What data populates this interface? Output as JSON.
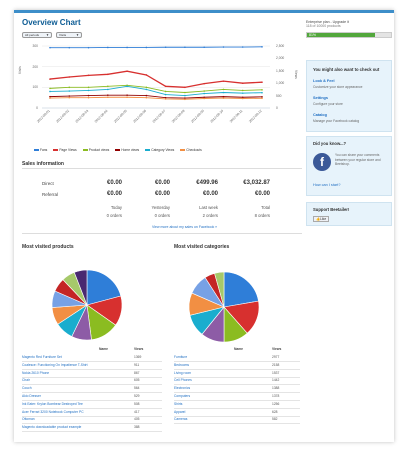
{
  "title": "Overview Chart",
  "selects": {
    "period": "All periods",
    "stats": "Visits"
  },
  "axis": {
    "left_ticks": [
      "300",
      "200",
      "100",
      "0"
    ],
    "right_ticks": [
      "2,500",
      "2,000",
      "1,500",
      "1,000",
      "500",
      "0"
    ],
    "left_label": "Visits",
    "right_label": "Views",
    "x_ticks": [
      "2012-08-01",
      "2012-08-02",
      "2012-08-03",
      "2012-08-04",
      "2012-08-05",
      "2012-08-06",
      "2012-08-07",
      "2012-08-08",
      "2012-08-09",
      "2012-08-10",
      "2012-08-11",
      "2012-08-12"
    ]
  },
  "legend": [
    {
      "label": "Fans",
      "color": "#2f7ed8"
    },
    {
      "label": "Page Views",
      "color": "#d7302f"
    },
    {
      "label": "Product views",
      "color": "#8bbc21"
    },
    {
      "label": "Home views",
      "color": "#910000"
    },
    {
      "label": "Category Views",
      "color": "#1aadce"
    },
    {
      "label": "Checkouts",
      "color": "#f28f43"
    }
  ],
  "chart_data": {
    "type": "line",
    "x": [
      "2012-08-01",
      "2012-08-02",
      "2012-08-03",
      "2012-08-04",
      "2012-08-05",
      "2012-08-06",
      "2012-08-07",
      "2012-08-08",
      "2012-08-09",
      "2012-08-10",
      "2012-08-11",
      "2012-08-12"
    ],
    "ylim": [
      0,
      300
    ],
    "series": [
      {
        "name": "Fans",
        "values": [
          292,
          292,
          292,
          293,
          293,
          293,
          294,
          294,
          294,
          295,
          295,
          296
        ]
      },
      {
        "name": "Page Views",
        "values": [
          140,
          150,
          158,
          163,
          178,
          160,
          105,
          100,
          118,
          130,
          120,
          125
        ]
      },
      {
        "name": "Product views",
        "values": [
          95,
          100,
          100,
          105,
          110,
          100,
          80,
          75,
          82,
          90,
          85,
          88
        ]
      },
      {
        "name": "Home views",
        "values": [
          55,
          58,
          60,
          62,
          62,
          60,
          50,
          48,
          52,
          55,
          52,
          54
        ]
      },
      {
        "name": "Category Views",
        "values": [
          80,
          82,
          85,
          90,
          105,
          90,
          65,
          60,
          70,
          75,
          72,
          74
        ]
      },
      {
        "name": "Checkouts",
        "values": [
          48,
          50,
          50,
          52,
          52,
          50,
          44,
          42,
          46,
          48,
          46,
          47
        ]
      }
    ]
  },
  "sales": {
    "heading": "Sales information",
    "rows": [
      {
        "label": "Direct",
        "values": [
          "€0.00",
          "€0.00",
          "€499.96",
          "€3,032.87"
        ]
      },
      {
        "label": "Referral",
        "values": [
          "€0.00",
          "€0.00",
          "€0.00",
          "€0.00"
        ]
      }
    ],
    "periods": [
      "Today",
      "Yesterday",
      "Last week",
      "Total"
    ],
    "orders": [
      "0 orders",
      "0 orders",
      "2 orders",
      "8 orders"
    ],
    "link": "View more about my sales on Facebook »"
  },
  "products": {
    "heading": "Most visited products",
    "col_name": "Name",
    "col_views": "Views",
    "colors": [
      "#2f7ed8",
      "#d7302f",
      "#8bbc21",
      "#8d5ca6",
      "#1aadce",
      "#f28f43",
      "#77a1e5",
      "#c42525",
      "#a6c96a",
      "#492970"
    ],
    "rows": [
      {
        "name": "Magento Red Furniture Set",
        "views": "1369"
      },
      {
        "name": "Coalesce: Functioning On Impatience T-Shirt",
        "views": "911"
      },
      {
        "name": "Nokia 2610 Phone",
        "views": "867"
      },
      {
        "name": "Chair",
        "views": "605"
      },
      {
        "name": "Couch",
        "views": "564"
      },
      {
        "name": "Akio Dresser",
        "views": "529"
      },
      {
        "name": "Ink Eater: Krylon Bombear Destroyed Tee",
        "views": "508"
      },
      {
        "name": "Acer Ferrari 3200 Notebook Computer PC",
        "views": "417"
      },
      {
        "name": "Ottoman",
        "views": "405"
      },
      {
        "name": "Magento downloadable product example",
        "views": "388"
      }
    ]
  },
  "categories": {
    "heading": "Most visited categories",
    "col_name": "Name",
    "col_views": "Views",
    "colors": [
      "#2f7ed8",
      "#d7302f",
      "#8bbc21",
      "#8d5ca6",
      "#1aadce",
      "#f28f43",
      "#77a1e5",
      "#c42525",
      "#a6c96a",
      "#492970"
    ],
    "rows": [
      {
        "name": "Furniture",
        "views": "2977"
      },
      {
        "name": "Bedrooms",
        "views": "2158"
      },
      {
        "name": "Living room",
        "views": "1537"
      },
      {
        "name": "Cell Phones",
        "views": "1442"
      },
      {
        "name": "Electronics",
        "views": "1388"
      },
      {
        "name": "Computers",
        "views": "1378"
      },
      {
        "name": "Shirts",
        "views": "1256"
      },
      {
        "name": "Apparel",
        "views": "628"
      },
      {
        "name": "Cameras",
        "views": "582"
      }
    ]
  },
  "sidebar": {
    "plan": "Enterprise plan - Upgrade it",
    "products": "118 of 10000 products",
    "progress_label": "81%",
    "progress": 0.81,
    "checkout_title": "You might also want to check out",
    "items": [
      {
        "title": "Look & Feel",
        "desc": "Customize your store appearance"
      },
      {
        "title": "Settings",
        "desc": "Configure your store"
      },
      {
        "title": "Catalog",
        "desc": "Manage your Facebook catalog"
      }
    ],
    "did_you_know": "Did you know...?",
    "share_text": "You can share your comments between your regular store and Beetshop.",
    "how_link": "How can I start?",
    "support": "Support Beetailer!",
    "like": "Like"
  }
}
